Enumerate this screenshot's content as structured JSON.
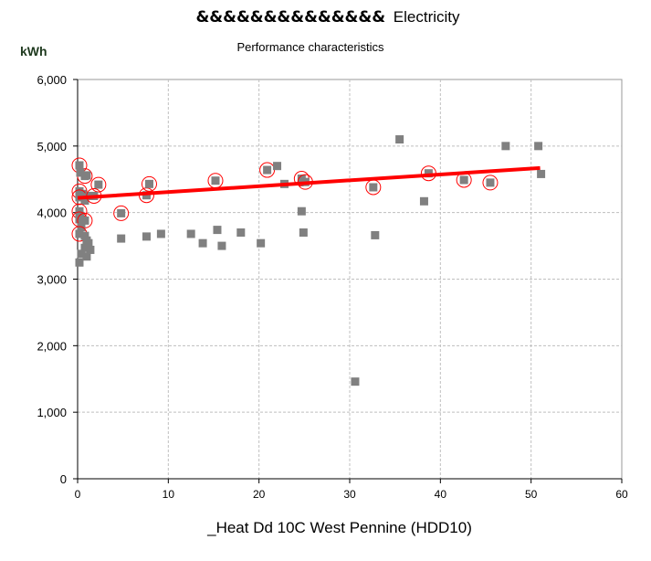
{
  "chart_data": {
    "type": "scatter",
    "title_prefix": "&&&&&&&&&&&&&&",
    "title": "Electricity",
    "subtitle": "Performance characteristics",
    "ylabel": "kWh",
    "xlabel": "_Heat Dd 10C West Pennine (HDD10)",
    "xlim": [
      0,
      60
    ],
    "ylim": [
      0,
      6000
    ],
    "x_ticks": [
      "0",
      "10",
      "20",
      "30",
      "40",
      "50",
      "60"
    ],
    "y_ticks": [
      "0",
      "1,000",
      "2,000",
      "3,000",
      "4,000",
      "5,000",
      "6,000"
    ],
    "grid": true,
    "point_color": "#808080",
    "line_color": "#ff0000",
    "trendline": {
      "x": [
        0,
        51
      ],
      "y": [
        4220,
        4670
      ]
    },
    "points": [
      {
        "x": 0.2,
        "y": 4710,
        "circled": true
      },
      {
        "x": 0.8,
        "y": 4550,
        "circled": true
      },
      {
        "x": 0.3,
        "y": 4600,
        "circled": false
      },
      {
        "x": 1.0,
        "y": 4560,
        "circled": false
      },
      {
        "x": 0.2,
        "y": 4320,
        "circled": true
      },
      {
        "x": 0.5,
        "y": 4280,
        "circled": false
      },
      {
        "x": 0.2,
        "y": 4230,
        "circled": true
      },
      {
        "x": 1.3,
        "y": 4250,
        "circled": false
      },
      {
        "x": 0.8,
        "y": 4180,
        "circled": false
      },
      {
        "x": 2.3,
        "y": 4420,
        "circled": true
      },
      {
        "x": 1.8,
        "y": 4250,
        "circled": true
      },
      {
        "x": 0.2,
        "y": 4020,
        "circled": true
      },
      {
        "x": 0.3,
        "y": 3950,
        "circled": false
      },
      {
        "x": 0.2,
        "y": 3900,
        "circled": true
      },
      {
        "x": 0.8,
        "y": 3880,
        "circled": true
      },
      {
        "x": 0.4,
        "y": 3780,
        "circled": false
      },
      {
        "x": 0.2,
        "y": 3680,
        "circled": true
      },
      {
        "x": 0.8,
        "y": 3650,
        "circled": false
      },
      {
        "x": 1.0,
        "y": 3580,
        "circled": false
      },
      {
        "x": 1.2,
        "y": 3540,
        "circled": false
      },
      {
        "x": 0.8,
        "y": 3470,
        "circled": false
      },
      {
        "x": 1.4,
        "y": 3440,
        "circled": false
      },
      {
        "x": 0.4,
        "y": 3380,
        "circled": false
      },
      {
        "x": 1.0,
        "y": 3340,
        "circled": false
      },
      {
        "x": 0.2,
        "y": 3250,
        "circled": false
      },
      {
        "x": 4.8,
        "y": 3990,
        "circled": true
      },
      {
        "x": 4.8,
        "y": 3610,
        "circled": false
      },
      {
        "x": 7.6,
        "y": 4260,
        "circled": true
      },
      {
        "x": 7.9,
        "y": 4430,
        "circled": true
      },
      {
        "x": 7.6,
        "y": 3640,
        "circled": false
      },
      {
        "x": 9.2,
        "y": 3680,
        "circled": false
      },
      {
        "x": 12.5,
        "y": 3680,
        "circled": false
      },
      {
        "x": 13.8,
        "y": 3540,
        "circled": false
      },
      {
        "x": 15.2,
        "y": 4480,
        "circled": true
      },
      {
        "x": 15.4,
        "y": 3740,
        "circled": false
      },
      {
        "x": 15.9,
        "y": 3500,
        "circled": false
      },
      {
        "x": 18.0,
        "y": 3700,
        "circled": false
      },
      {
        "x": 20.2,
        "y": 3540,
        "circled": false
      },
      {
        "x": 20.9,
        "y": 4640,
        "circled": true
      },
      {
        "x": 22.0,
        "y": 4700,
        "circled": false
      },
      {
        "x": 22.8,
        "y": 4430,
        "circled": false
      },
      {
        "x": 24.7,
        "y": 4510,
        "circled": true
      },
      {
        "x": 25.1,
        "y": 4460,
        "circled": true
      },
      {
        "x": 24.7,
        "y": 4020,
        "circled": false
      },
      {
        "x": 24.9,
        "y": 3700,
        "circled": false
      },
      {
        "x": 30.6,
        "y": 1460,
        "circled": false
      },
      {
        "x": 32.6,
        "y": 4380,
        "circled": true
      },
      {
        "x": 32.8,
        "y": 3660,
        "circled": false
      },
      {
        "x": 35.5,
        "y": 5100,
        "circled": false
      },
      {
        "x": 38.2,
        "y": 4170,
        "circled": false
      },
      {
        "x": 38.7,
        "y": 4590,
        "circled": true
      },
      {
        "x": 42.6,
        "y": 4490,
        "circled": true
      },
      {
        "x": 45.5,
        "y": 4450,
        "circled": true
      },
      {
        "x": 47.2,
        "y": 5000,
        "circled": false
      },
      {
        "x": 50.8,
        "y": 5000,
        "circled": false
      },
      {
        "x": 51.1,
        "y": 4580,
        "circled": false
      }
    ]
  }
}
